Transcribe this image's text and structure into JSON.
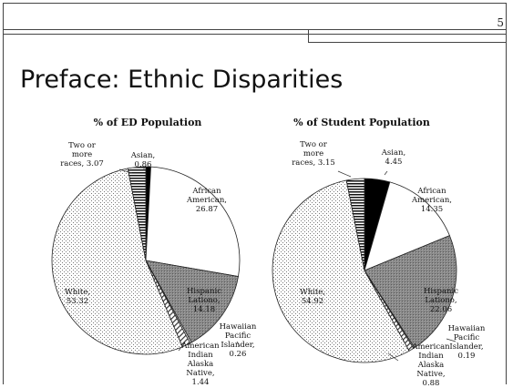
{
  "slide": {
    "page_number": "5",
    "title": "Preface: Ethnic Disparities"
  },
  "chart_data": [
    {
      "type": "pie",
      "title": "% of ED Population",
      "slices": [
        {
          "name": "Asian",
          "value": 0.86,
          "label": [
            "Asian,",
            "0.86"
          ],
          "pattern": "black"
        },
        {
          "name": "African American",
          "value": 26.87,
          "label": [
            "African",
            "American,",
            "26.87"
          ],
          "pattern": "white"
        },
        {
          "name": "Hispanic Lationo",
          "value": 14.18,
          "label": [
            "Hispanic",
            "Lationo,",
            "14.18"
          ],
          "pattern": "gray"
        },
        {
          "name": "Hawaiian Pacific Islander",
          "value": 0.26,
          "label": [
            "Hawaiian",
            "Pacific",
            "Islander,",
            "0.26"
          ],
          "pattern": "white"
        },
        {
          "name": "American Indian Alaska Native",
          "value": 1.44,
          "label": [
            "American",
            "Indian",
            "Alaska",
            "Native,",
            "1.44"
          ],
          "pattern": "diag"
        },
        {
          "name": "White",
          "value": 53.32,
          "label": [
            "White,",
            "53.32"
          ],
          "pattern": "dots"
        },
        {
          "name": "Two or more races",
          "value": 3.07,
          "label": [
            "Two or",
            "more",
            "races, 3.07"
          ],
          "pattern": "hstripe"
        }
      ]
    },
    {
      "type": "pie",
      "title": "% of Student Population",
      "slices": [
        {
          "name": "Asian",
          "value": 4.45,
          "label": [
            "Asian,",
            "4.45"
          ],
          "pattern": "black"
        },
        {
          "name": "African American",
          "value": 14.35,
          "label": [
            "African",
            "American,",
            "14.35"
          ],
          "pattern": "white"
        },
        {
          "name": "Hispanic Lationo",
          "value": 22.06,
          "label": [
            "Hispanic",
            "Lationo,",
            "22.06"
          ],
          "pattern": "gray"
        },
        {
          "name": "Hawaiian Pacific Islander",
          "value": 0.19,
          "label": [
            "Hawaiian",
            "Pacific",
            "Islander,",
            "0.19"
          ],
          "pattern": "white"
        },
        {
          "name": "American Indian Alaska Native",
          "value": 0.88,
          "label": [
            "American",
            "Indian",
            "Alaska",
            "Native,",
            "0.88"
          ],
          "pattern": "diag"
        },
        {
          "name": "White",
          "value": 54.92,
          "label": [
            "White,",
            "54.92"
          ],
          "pattern": "dots"
        },
        {
          "name": "Two or more races",
          "value": 3.15,
          "label": [
            "Two or",
            "more",
            "races, 3.15"
          ],
          "pattern": "hstripe"
        }
      ]
    }
  ]
}
